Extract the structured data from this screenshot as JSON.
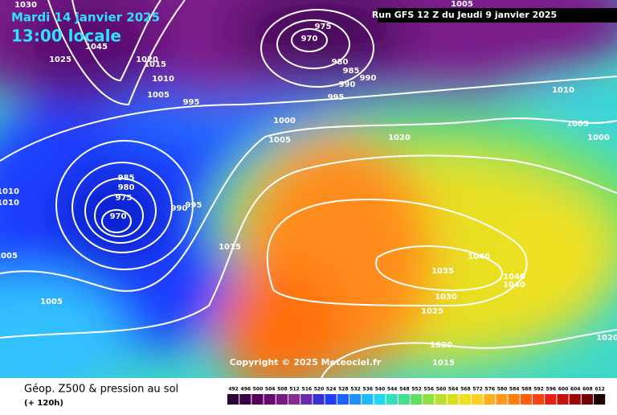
{
  "header": {
    "date": "Mardi 14 janvier 2025",
    "time": "13:00 locale",
    "run": "Run GFS 12 Z du Jeudi 9 janvier 2025"
  },
  "copyright": "Copyright © 2025 Meteociel.fr",
  "footer": {
    "title": "Géop. Z500 & pression au sol",
    "subtitle": "(+ 120h)"
  },
  "isobar_labels": [
    1030,
    1025,
    1045,
    1020,
    1015,
    1010,
    1005,
    995,
    1000,
    1005,
    970,
    975,
    980,
    985,
    990,
    990,
    995,
    1005,
    1020,
    1010,
    1005,
    1000,
    985,
    980,
    975,
    970,
    990,
    995,
    1010,
    1010,
    1005,
    1005,
    1015,
    1040,
    1035,
    1040,
    1040,
    1030,
    1025,
    1020,
    1015,
    1020,
    1020
  ],
  "legend": {
    "values": [
      492,
      496,
      500,
      504,
      508,
      512,
      516,
      520,
      524,
      528,
      532,
      536,
      540,
      544,
      548,
      552,
      556,
      560,
      564,
      568,
      572,
      576,
      580,
      584,
      588,
      592,
      596,
      600,
      604,
      608,
      612
    ],
    "colors": [
      "#2b0033",
      "#3d0047",
      "#52005c",
      "#660a70",
      "#7a1a85",
      "#8a2a96",
      "#6a2ab0",
      "#3a30d8",
      "#1f3cff",
      "#2060ff",
      "#2090ff",
      "#20b8ff",
      "#20d8f0",
      "#30e0c0",
      "#40e090",
      "#60e060",
      "#90e040",
      "#b8e030",
      "#d8e020",
      "#f0e020",
      "#ffd020",
      "#ffb020",
      "#ff9a1a",
      "#ff8010",
      "#ff6010",
      "#ff4010",
      "#e82010",
      "#c81010",
      "#a00808",
      "#700404",
      "#200000"
    ]
  }
}
